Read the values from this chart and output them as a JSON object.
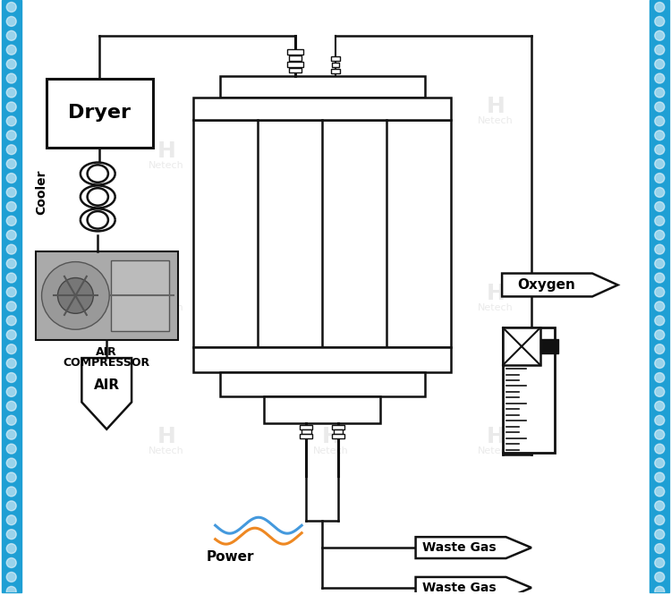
{
  "bg_color": "#ffffff",
  "border_color": "#1e9fd4",
  "border_width": 22,
  "labels": {
    "dryer": "Dryer",
    "cooler": "Cooler",
    "air_line1": "AIR",
    "air_line2": "COMPRESSOR",
    "air": "AIR",
    "power": "Power",
    "oxygen": "Oxygen",
    "waste_gas1": "Waste Gas",
    "waste_gas2": "Waste Gas"
  },
  "wm_color": "#c0c0c0",
  "wm_alpha": 0.3
}
